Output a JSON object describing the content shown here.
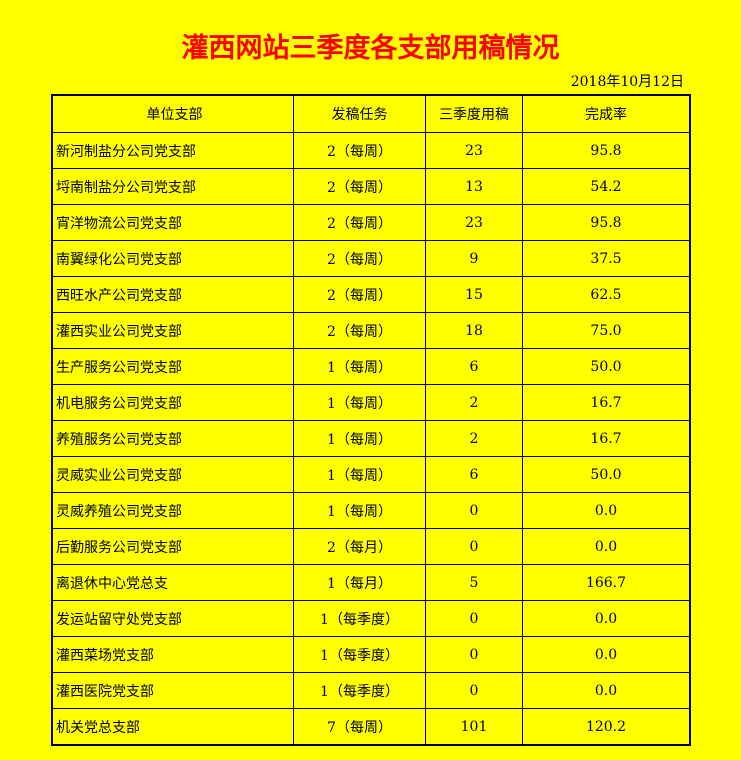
{
  "title": "灌西网站三季度各支部用稿情况",
  "date": "2018年10月12日",
  "table": {
    "headers": [
      "单位支部",
      "发稿任务",
      "三季度用稿",
      "完成率"
    ],
    "rows": [
      [
        "新河制盐分公司党支部",
        "2（每周）",
        "23",
        "95.8"
      ],
      [
        "埒南制盐分公司党支部",
        "2（每周）",
        "13",
        "54.2"
      ],
      [
        "宵洋物流公司党支部",
        "2（每周）",
        "23",
        "95.8"
      ],
      [
        "南翼绿化公司党支部",
        "2（每周）",
        "9",
        "37.5"
      ],
      [
        "西旺水产公司党支部",
        "2（每周）",
        "15",
        "62.5"
      ],
      [
        "灌西实业公司党支部",
        "2（每周）",
        "18",
        "75.0"
      ],
      [
        "生产服务公司党支部",
        "1（每周）",
        "6",
        "50.0"
      ],
      [
        "机电服务公司党支部",
        "1（每周）",
        "2",
        "16.7"
      ],
      [
        "养殖服务公司党支部",
        "1（每周）",
        "2",
        "16.7"
      ],
      [
        "灵威实业公司党支部",
        "1（每周）",
        "6",
        "50.0"
      ],
      [
        "灵威养殖公司党支部",
        "1（每周）",
        "0",
        "0.0"
      ],
      [
        "后勤服务公司党支部",
        "2（每月）",
        "0",
        "0.0"
      ],
      [
        "离退休中心党总支",
        "1（每月）",
        "5",
        "166.7"
      ],
      [
        "发运站留守处党支部",
        "1（每季度）",
        "0",
        "0.0"
      ],
      [
        "灌西菜场党支部",
        "1（每季度）",
        "0",
        "0.0"
      ],
      [
        "灌西医院党支部",
        "1（每季度）",
        "0",
        "0.0"
      ],
      [
        "机关党总支部",
        "7（每周）",
        "101",
        "120.2"
      ]
    ]
  },
  "colors": {
    "background": "#ffff00",
    "title": "#ff0000"
  }
}
